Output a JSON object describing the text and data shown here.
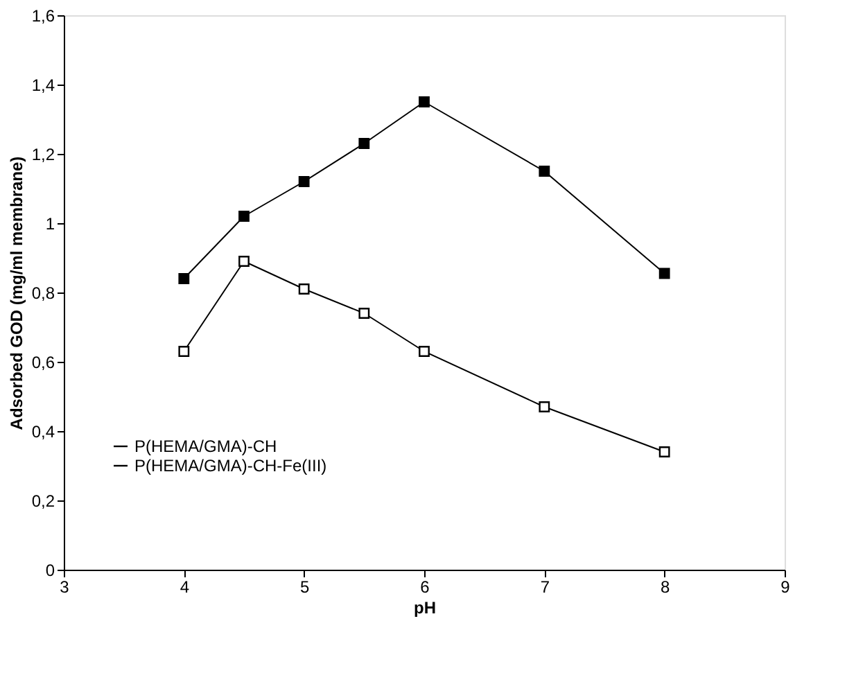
{
  "chart_data": {
    "type": "line",
    "xlabel": "pH",
    "ylabel": "Adsorbed GOD (mg/ml membrane)",
    "series": [
      {
        "name": "P(HEMA/GMA)-CH",
        "color": "#000000",
        "x": [
          4,
          4.5,
          5,
          5.5,
          6,
          7,
          8
        ],
        "values": [
          0.63,
          0.89,
          0.81,
          0.74,
          0.63,
          0.47,
          0.34
        ]
      },
      {
        "name": "P(HEMA/GMA)-CH-Fe(III)",
        "color": "#000000",
        "x": [
          4,
          4.5,
          5,
          5.5,
          6,
          7,
          8
        ],
        "values": [
          0.84,
          1.02,
          1.12,
          1.23,
          1.35,
          1.15,
          0.855
        ]
      }
    ],
    "xlim": [
      3,
      9
    ],
    "xticks": [
      3,
      4,
      5,
      6,
      7,
      8,
      9
    ],
    "ylim": [
      0,
      1.6
    ],
    "yticks": [
      0,
      {
        "value": 0.2,
        "label": "0,2"
      },
      {
        "value": 0.4,
        "label": "0,4"
      },
      {
        "value": 0.6,
        "label": "0,6"
      },
      {
        "value": 0.8,
        "label": "0,8"
      },
      1,
      {
        "value": 1.2,
        "label": "1,2"
      },
      {
        "value": 1.4,
        "label": "1,4"
      },
      {
        "value": 1.6,
        "label": "1,6"
      }
    ],
    "marker": "square",
    "line_style": "solid",
    "grid": false,
    "legend": "bottom left"
  }
}
